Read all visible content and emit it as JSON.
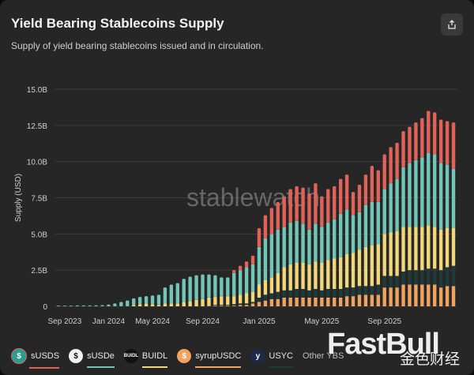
{
  "header": {
    "title": "Yield Bearing Stablecoins Supply",
    "subtitle": "Supply of yield bearing stablecoins issued and in circulation."
  },
  "share_icon": "share-icon",
  "watermarks": {
    "chart_brand": "stablewatch",
    "site_brand": "FastBull",
    "site_brand_cn": "金色财经"
  },
  "colors": {
    "background": "#262626",
    "sUSDS": "#e2625a",
    "sUSDe": "#72c6b8",
    "BUIDL": "#f2d77a",
    "syrupUSDC": "#f0a35e",
    "USYC": "#1f3a3a"
  },
  "legend": [
    {
      "label": "sUSDS",
      "icon": "S",
      "color": "#e2625a"
    },
    {
      "label": "sUSDe",
      "icon": "S",
      "color": "#72c6b8"
    },
    {
      "label": "BUIDL",
      "icon": "BUIDL",
      "color": "#f2d77a"
    },
    {
      "label": "syrupUSDC",
      "icon": "s",
      "color": "#f0a35e"
    },
    {
      "label": "USYC",
      "icon": "y",
      "color": "#1f3a3a"
    },
    {
      "label": "Other YBS",
      "icon": "",
      "color": "#888888"
    }
  ],
  "chart_data": {
    "type": "bar",
    "stacked": true,
    "title": "Yield Bearing Stablecoins Supply",
    "xlabel": "",
    "ylabel": "Supply (USD)",
    "ylim": [
      0,
      15
    ],
    "yticks": [
      0,
      2.5,
      5,
      7.5,
      10,
      12.5,
      15
    ],
    "ytick_labels": [
      "0",
      "2.5B",
      "5.0B",
      "7.5B",
      "10.0B",
      "12.5B",
      "15.0B"
    ],
    "xtick_labels": [
      "Sep 2023",
      "Jan 2024",
      "May 2024",
      "Sep 2024",
      "Jan 2025",
      "May 2025",
      "Sep 2025"
    ],
    "xtick_positions": [
      1,
      8,
      15,
      23,
      32,
      42,
      52
    ],
    "series_order": [
      "syrupUSDC",
      "USYC",
      "BUIDL",
      "sUSDe",
      "sUSDS"
    ],
    "totals": [
      0.05,
      0.05,
      0.05,
      0.06,
      0.06,
      0.06,
      0.07,
      0.08,
      0.12,
      0.2,
      0.3,
      0.4,
      0.55,
      0.65,
      0.7,
      0.75,
      0.8,
      1.3,
      1.5,
      1.6,
      1.9,
      2.05,
      2.15,
      2.2,
      2.2,
      2.1,
      2.0,
      2.0,
      2.5,
      2.8,
      3.1,
      3.5,
      5.4,
      6.3,
      6.8,
      7.2,
      7.6,
      8.1,
      8.3,
      8.2,
      7.8,
      8.5,
      7.6,
      8.1,
      8.3,
      8.8,
      9.1,
      7.9,
      8.4,
      9.1,
      9.7,
      9.4,
      10.5,
      11.0,
      11.3,
      12.1,
      12.4,
      12.7,
      13.0,
      13.5,
      13.4,
      12.9,
      12.8,
      12.7
    ],
    "sUSDe": [
      0.05,
      0.05,
      0.05,
      0.06,
      0.06,
      0.06,
      0.07,
      0.08,
      0.12,
      0.2,
      0.3,
      0.4,
      0.45,
      0.5,
      0.5,
      0.6,
      0.7,
      1.1,
      1.3,
      1.4,
      1.6,
      1.7,
      1.7,
      1.7,
      1.6,
      1.5,
      1.3,
      1.3,
      1.6,
      1.7,
      1.8,
      1.9,
      2.6,
      2.9,
      3.0,
      3.0,
      2.8,
      2.9,
      2.9,
      2.7,
      2.4,
      2.6,
      2.5,
      2.6,
      2.7,
      3.0,
      3.1,
      2.6,
      2.6,
      2.9,
      3.0,
      2.9,
      3.1,
      3.4,
      3.6,
      4.1,
      4.4,
      4.6,
      4.8,
      5.0,
      5.0,
      4.6,
      4.4,
      4.1
    ],
    "sUSDS": [
      0,
      0,
      0,
      0,
      0,
      0,
      0,
      0,
      0,
      0,
      0,
      0,
      0,
      0,
      0,
      0,
      0,
      0,
      0,
      0,
      0,
      0,
      0,
      0,
      0,
      0,
      0,
      0,
      0.2,
      0.3,
      0.4,
      0.6,
      1.3,
      1.6,
      1.8,
      1.9,
      2.1,
      2.3,
      2.4,
      2.5,
      2.5,
      2.8,
      2.1,
      2.3,
      2.3,
      2.4,
      2.4,
      1.6,
      1.9,
      2.1,
      2.5,
      2.2,
      2.4,
      2.5,
      2.5,
      2.5,
      2.5,
      2.6,
      2.7,
      2.9,
      2.9,
      3.0,
      3.0,
      3.2
    ],
    "BUIDL": [
      0,
      0,
      0,
      0,
      0,
      0,
      0,
      0,
      0,
      0,
      0,
      0,
      0.1,
      0.15,
      0.2,
      0.15,
      0.1,
      0.2,
      0.2,
      0.2,
      0.3,
      0.35,
      0.45,
      0.5,
      0.55,
      0.55,
      0.6,
      0.6,
      0.55,
      0.6,
      0.7,
      0.7,
      0.9,
      1.0,
      1.1,
      1.3,
      1.6,
      1.8,
      1.8,
      1.8,
      1.8,
      1.9,
      1.9,
      2.0,
      2.1,
      2.2,
      2.3,
      2.4,
      2.5,
      2.7,
      2.8,
      2.8,
      2.9,
      3.0,
      3.1,
      3.1,
      3.0,
      3.0,
      3.0,
      3.0,
      2.9,
      2.8,
      2.7,
      2.6
    ],
    "USYC": [
      0,
      0,
      0,
      0,
      0,
      0,
      0,
      0,
      0,
      0,
      0,
      0,
      0,
      0,
      0,
      0,
      0,
      0,
      0,
      0,
      0,
      0,
      0,
      0,
      0,
      0.05,
      0.05,
      0.05,
      0.1,
      0.1,
      0.1,
      0.1,
      0.3,
      0.4,
      0.4,
      0.5,
      0.5,
      0.5,
      0.6,
      0.6,
      0.5,
      0.6,
      0.5,
      0.6,
      0.6,
      0.6,
      0.6,
      0.6,
      0.6,
      0.6,
      0.6,
      0.7,
      0.8,
      0.8,
      0.8,
      0.9,
      1.0,
      1.0,
      1.0,
      1.1,
      1.1,
      1.2,
      1.3,
      1.4
    ],
    "syrupUSDC": [
      0,
      0,
      0,
      0,
      0,
      0,
      0,
      0,
      0,
      0,
      0,
      0,
      0,
      0,
      0,
      0,
      0,
      0,
      0,
      0,
      0,
      0,
      0,
      0,
      0.05,
      0.05,
      0.05,
      0.05,
      0.05,
      0.1,
      0.1,
      0.2,
      0.3,
      0.4,
      0.5,
      0.5,
      0.6,
      0.6,
      0.6,
      0.6,
      0.6,
      0.6,
      0.6,
      0.6,
      0.6,
      0.6,
      0.7,
      0.7,
      0.8,
      0.8,
      0.8,
      0.8,
      1.3,
      1.3,
      1.3,
      1.5,
      1.5,
      1.5,
      1.5,
      1.5,
      1.5,
      1.3,
      1.4,
      1.4
    ]
  }
}
